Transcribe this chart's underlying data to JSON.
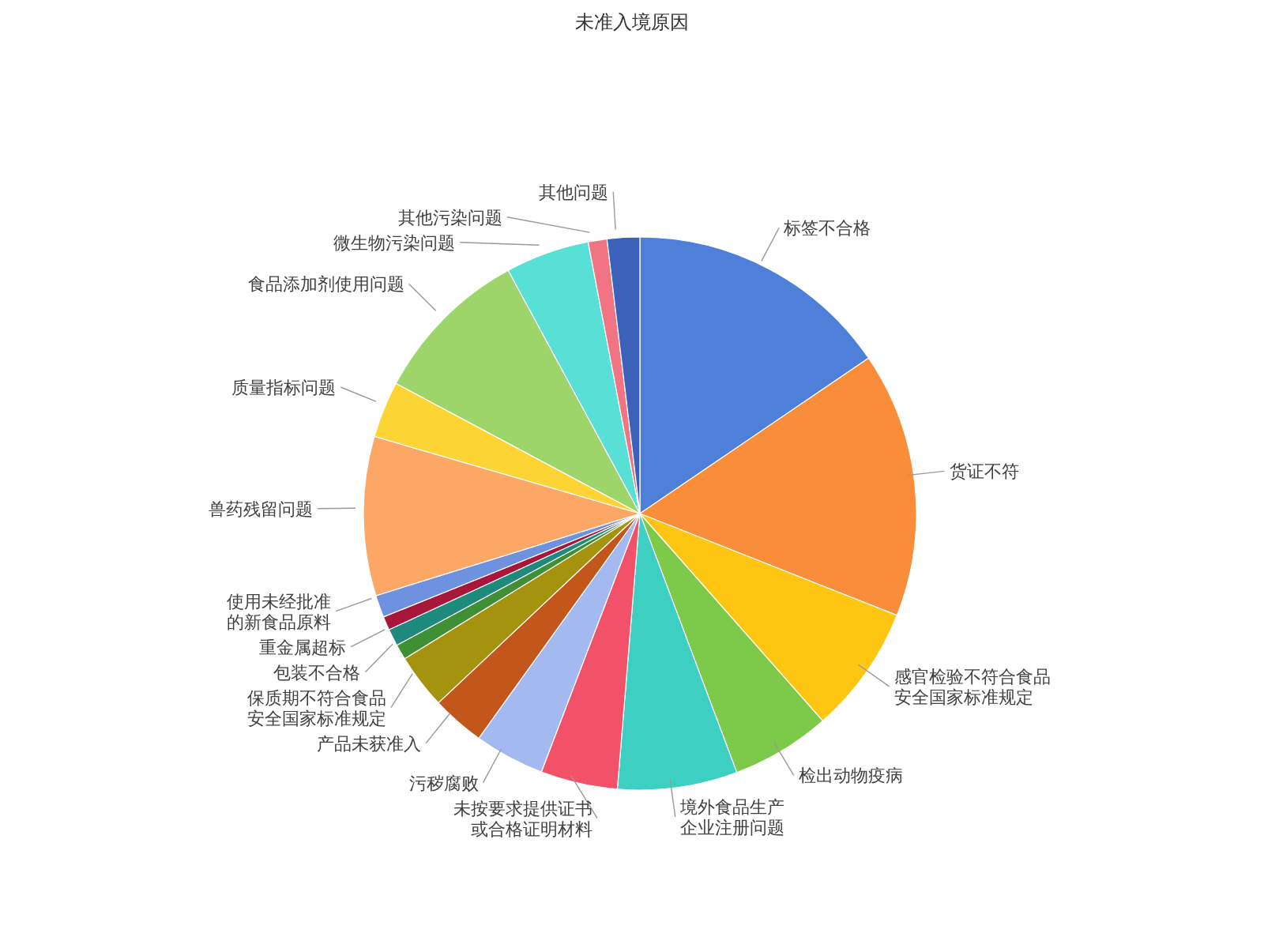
{
  "chart_data": {
    "type": "pie",
    "title": "未准入境原因",
    "categories": [
      "标签不合格",
      "货证不符",
      "感官检验不符合食品安全国家标准规定",
      "检出动物疫病",
      "境外食品生产企业注册问题",
      "未按要求提供证书或合格证明材料",
      "污秽腐败",
      "产品未获准入",
      "保质期不符合食品安全国家标准规定",
      "包装不合格",
      "重金属超标",
      null,
      "使用未经批准的新食品原料",
      "兽药残留问题",
      "质量指标问题",
      "食品添加剂使用问题",
      "微生物污染问题",
      "其他污染问题",
      "其他问题"
    ],
    "values": [
      15.5,
      15.5,
      7.5,
      5.8,
      7.0,
      4.5,
      4.1,
      3.1,
      3.2,
      0.9,
      1.0,
      0.8,
      1.3,
      9.3,
      3.3,
      9.3,
      4.9,
      1.1,
      1.9
    ],
    "colors": [
      "#4f80d9",
      "#f98d3a",
      "#fec513",
      "#7dc94a",
      "#3dcfc2",
      "#f2516a",
      "#a4b9ef",
      "#c2561b",
      "#a5930f",
      "#3f8f34",
      "#1e8a7c",
      "#a8163a",
      "#6e92df",
      "#fca766",
      "#fcd535",
      "#9dd56b",
      "#58dfd6",
      "#f07484",
      "#3b62b8"
    ]
  }
}
